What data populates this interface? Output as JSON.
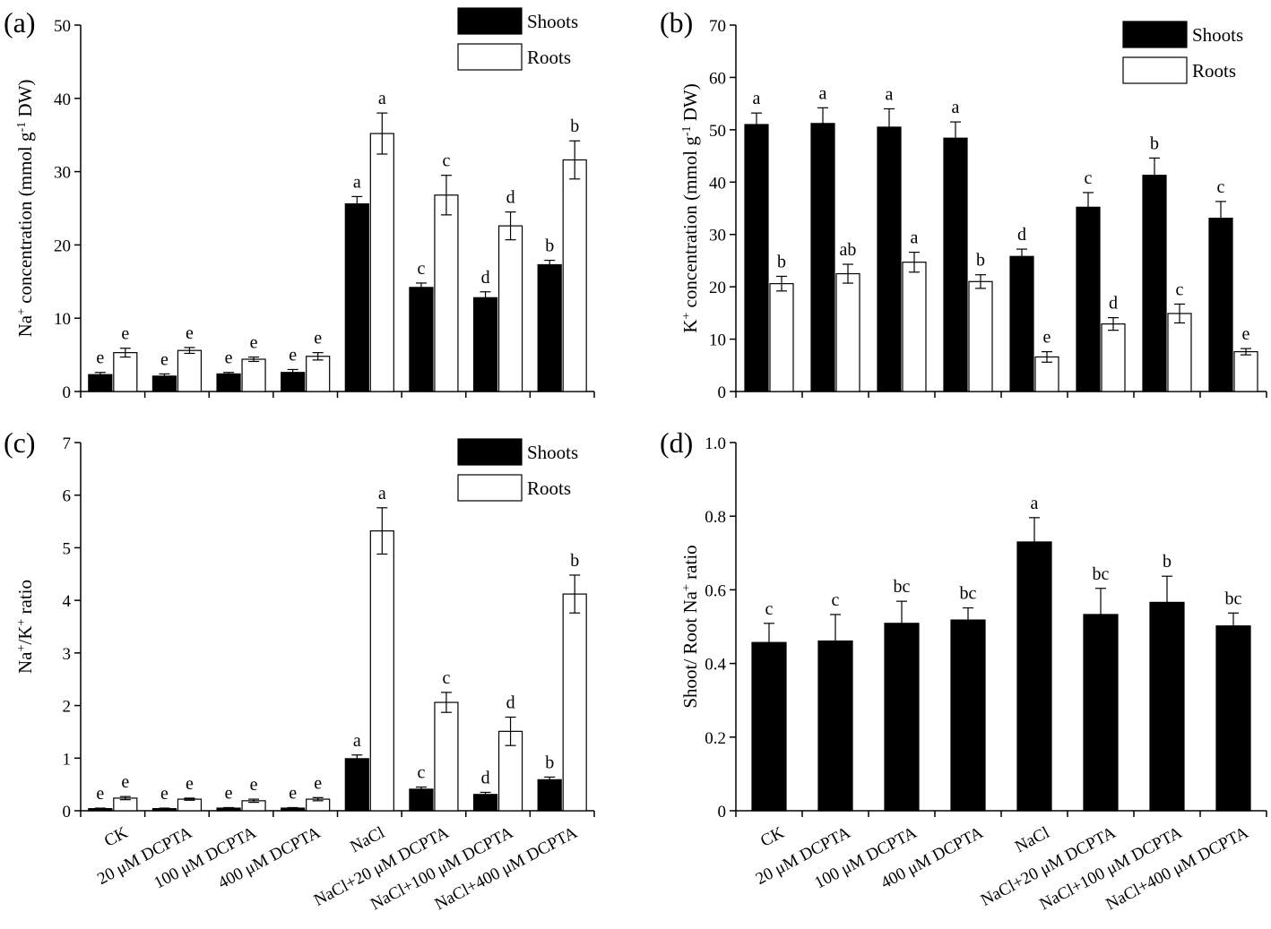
{
  "colors": {
    "shoots": "#000000",
    "roots": "#ffffff",
    "axis": "#000000"
  },
  "legend": {
    "shoots": "Shoots",
    "roots": "Roots"
  },
  "chart_data": [
    {
      "id": "a",
      "panel_label": "(a)",
      "type": "bar",
      "ylabel": "Na+ concentration (mmol g-1 DW)",
      "ylabel_parts": {
        "pre": "Na",
        "sup1": "+",
        "mid": " concentration (mmol g",
        "sup2": "-1",
        "post": " DW)"
      },
      "ylim": [
        0,
        50
      ],
      "yticks": [
        "0",
        "10",
        "20",
        "30",
        "40",
        "50"
      ],
      "categories": [
        "CK",
        "20 μM DCPTA",
        "100 μM DCPTA",
        "400 μM DCPTA",
        "NaCl",
        "NaCl+20 μM DCPTA",
        "NaCl+100 μM DCPTA",
        "NaCl+400 μM DCPTA"
      ],
      "show_categories": false,
      "legend_position": "top-right",
      "series": [
        {
          "name": "Shoots",
          "values": [
            2.3,
            2.1,
            2.4,
            2.6,
            25.6,
            14.2,
            12.8,
            17.3
          ],
          "errors": [
            0.3,
            0.3,
            0.2,
            0.4,
            1.0,
            0.6,
            0.8,
            0.6
          ],
          "letters": [
            "e",
            "e",
            "e",
            "e",
            "a",
            "c",
            "d",
            "b"
          ]
        },
        {
          "name": "Roots",
          "values": [
            5.3,
            5.6,
            4.4,
            4.8,
            35.2,
            26.8,
            22.6,
            31.6
          ],
          "errors": [
            0.6,
            0.4,
            0.3,
            0.5,
            2.8,
            2.7,
            1.9,
            2.6
          ],
          "letters": [
            "e",
            "e",
            "e",
            "e",
            "a",
            "c",
            "d",
            "b"
          ]
        }
      ]
    },
    {
      "id": "b",
      "panel_label": "(b)",
      "type": "bar",
      "ylabel": "K+ concentration (mmol g-1 DW)",
      "ylabel_parts": {
        "pre": "K",
        "sup1": "+",
        "mid": " concentration (mmol g",
        "sup2": "-1",
        "post": " DW)"
      },
      "ylim": [
        0,
        70
      ],
      "yticks": [
        "0",
        "10",
        "20",
        "30",
        "40",
        "50",
        "60",
        "70"
      ],
      "categories": [
        "CK",
        "20 μM DCPTA",
        "100 μM DCPTA",
        "400 μM DCPTA",
        "NaCl",
        "NaCl+20 μM DCPTA",
        "NaCl+100 μM DCPTA",
        "NaCl+400 μM DCPTA"
      ],
      "show_categories": false,
      "legend_position": "top-right",
      "series": [
        {
          "name": "Shoots",
          "values": [
            51.0,
            51.2,
            50.5,
            48.4,
            25.8,
            35.2,
            41.3,
            33.1
          ],
          "errors": [
            2.2,
            3.0,
            3.5,
            3.1,
            1.4,
            2.8,
            3.3,
            3.2
          ],
          "letters": [
            "a",
            "a",
            "a",
            "a",
            "d",
            "c",
            "b",
            "c"
          ]
        },
        {
          "name": "Roots",
          "values": [
            20.6,
            22.5,
            24.7,
            21.0,
            6.6,
            12.9,
            14.9,
            7.6
          ],
          "errors": [
            1.4,
            1.8,
            1.9,
            1.3,
            1.0,
            1.2,
            1.8,
            0.6
          ],
          "letters": [
            "b",
            "ab",
            "a",
            "b",
            "e",
            "d",
            "c",
            "e"
          ]
        }
      ]
    },
    {
      "id": "c",
      "panel_label": "(c)",
      "type": "bar",
      "ylabel": "Na+/K+ ratio",
      "ylabel_parts": {
        "pre": "Na",
        "sup1": "+",
        "mid": "/K",
        "sup2": "+",
        "post": " ratio"
      },
      "ylim": [
        0,
        7
      ],
      "yticks": [
        "0",
        "1",
        "2",
        "3",
        "4",
        "5",
        "6",
        "7"
      ],
      "categories": [
        "CK",
        "20 μM DCPTA",
        "100 μM DCPTA",
        "400 μM DCPTA",
        "NaCl",
        "NaCl+20 μM DCPTA",
        "NaCl+100 μM DCPTA",
        "NaCl+400 μM DCPTA"
      ],
      "show_categories": true,
      "legend_position": "top-right",
      "series": [
        {
          "name": "Shoots",
          "values": [
            0.04,
            0.04,
            0.05,
            0.05,
            0.99,
            0.41,
            0.31,
            0.59
          ],
          "errors": [
            0.01,
            0.01,
            0.01,
            0.01,
            0.07,
            0.04,
            0.04,
            0.05
          ],
          "letters": [
            "e",
            "e",
            "e",
            "e",
            "a",
            "c",
            "d",
            "b"
          ]
        },
        {
          "name": "Roots",
          "values": [
            0.24,
            0.22,
            0.19,
            0.22,
            5.32,
            2.06,
            1.51,
            4.12
          ],
          "errors": [
            0.03,
            0.02,
            0.03,
            0.03,
            0.44,
            0.19,
            0.27,
            0.36
          ],
          "letters": [
            "e",
            "e",
            "e",
            "e",
            "a",
            "c",
            "d",
            "b"
          ]
        }
      ]
    },
    {
      "id": "d",
      "panel_label": "(d)",
      "type": "bar",
      "ylabel": "Shoot/ Root Na+ ratio",
      "ylabel_parts": {
        "pre": "Shoot/ Root Na",
        "sup1": "+",
        "mid": " ratio",
        "sup2": "",
        "post": ""
      },
      "ylim": [
        0,
        1.0
      ],
      "yticks": [
        "0",
        "0.2",
        "0.4",
        "0.6",
        "0.8",
        "1.0"
      ],
      "categories": [
        "CK",
        "20 μM DCPTA",
        "100 μM DCPTA",
        "400 μM DCPTA",
        "NaCl",
        "NaCl+20 μM DCPTA",
        "NaCl+100 μM DCPTA",
        "NaCl+400 μM DCPTA"
      ],
      "show_categories": true,
      "legend_position": "none",
      "series": [
        {
          "name": "Shoot/Root",
          "values": [
            0.457,
            0.461,
            0.509,
            0.518,
            0.73,
            0.533,
            0.566,
            0.502
          ],
          "errors": [
            0.052,
            0.072,
            0.06,
            0.033,
            0.066,
            0.071,
            0.071,
            0.035
          ],
          "letters": [
            "c",
            "c",
            "bc",
            "bc",
            "a",
            "bc",
            "b",
            "bc"
          ]
        }
      ]
    }
  ]
}
